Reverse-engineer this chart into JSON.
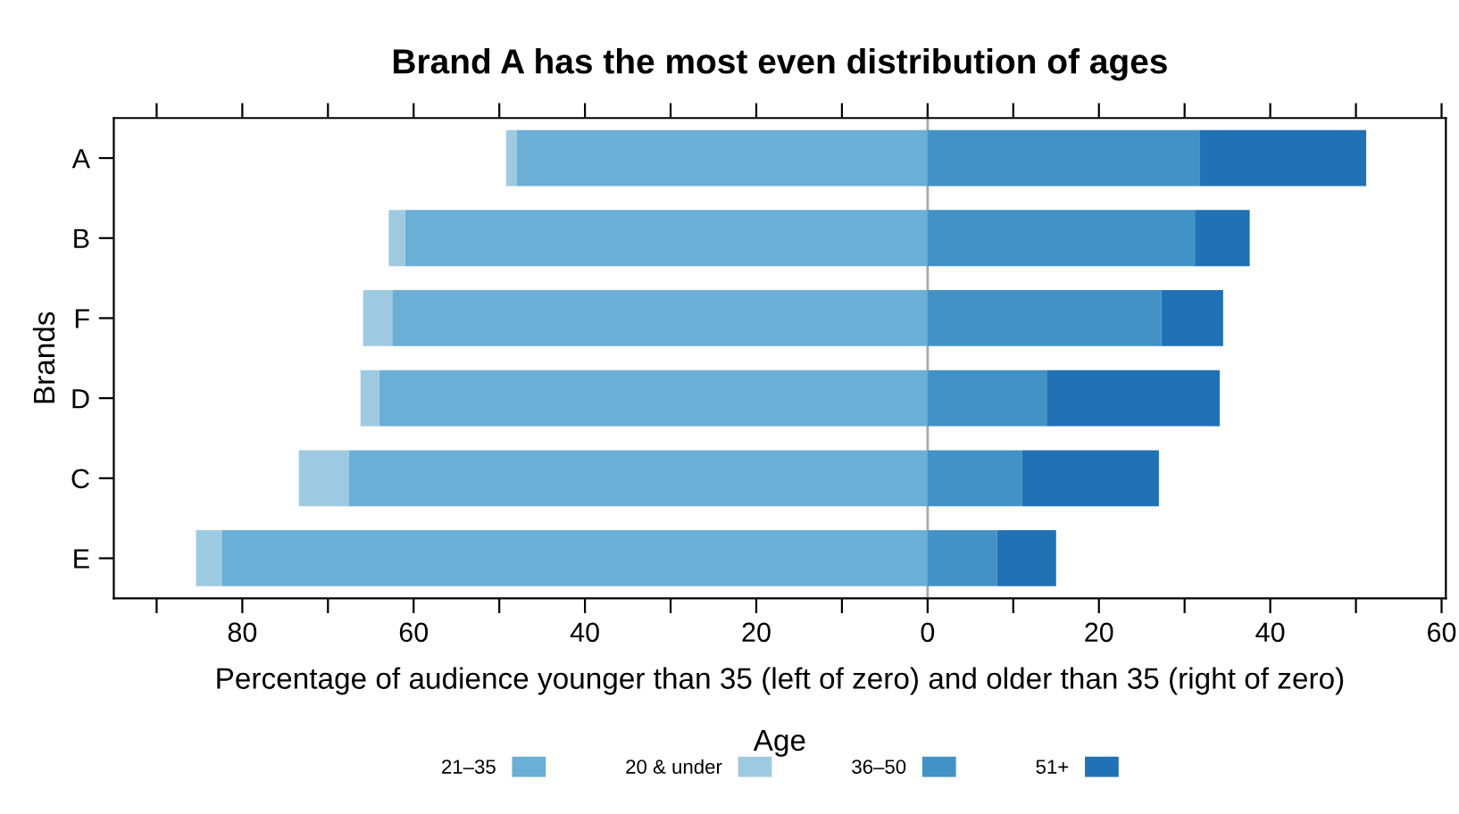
{
  "chart_data": {
    "type": "bar",
    "orientation": "horizontal",
    "stacked": true,
    "title": "Brand A has the most even distribution of ages",
    "xlabel": "Percentage of audience younger than 35 (left of zero) and older than 35 (right of zero)",
    "ylabel": "Brands",
    "legend_title": "Age",
    "legend": "bottom",
    "grid": false,
    "categories": [
      "A",
      "B",
      "F",
      "D",
      "C",
      "E"
    ],
    "series": [
      {
        "name": "21–35",
        "color": "#6baed6",
        "values": [
          -48.0,
          -61.0,
          -62.5,
          -64.0,
          -67.6,
          -82.4
        ]
      },
      {
        "name": "20 & under",
        "color": "#9ecae1",
        "values": [
          -1.2,
          -1.9,
          -3.4,
          -2.2,
          -5.8,
          -3.0
        ]
      },
      {
        "name": "36–50",
        "color": "#4292c6",
        "values": [
          31.8,
          31.2,
          27.3,
          13.9,
          11.0,
          8.1
        ]
      },
      {
        "name": "51+",
        "color": "#2171b5",
        "values": [
          19.4,
          6.4,
          7.2,
          20.2,
          16.0,
          6.9
        ]
      }
    ],
    "xlim": [
      -95,
      60.5
    ],
    "xticks": [
      {
        "value": -90,
        "label": null
      },
      {
        "value": -80,
        "label": "80"
      },
      {
        "value": -70,
        "label": null
      },
      {
        "value": -60,
        "label": "60"
      },
      {
        "value": -50,
        "label": null
      },
      {
        "value": -40,
        "label": "40"
      },
      {
        "value": -30,
        "label": null
      },
      {
        "value": -20,
        "label": "20"
      },
      {
        "value": -10,
        "label": null
      },
      0,
      {
        "value": 10,
        "label": null
      },
      20,
      {
        "value": 30,
        "label": null
      },
      40,
      {
        "value": 50,
        "label": null
      },
      60
    ],
    "ref_lines": [
      {
        "axis": "x",
        "value": 0,
        "label": null,
        "color": "#aaaaaa"
      }
    ]
  }
}
